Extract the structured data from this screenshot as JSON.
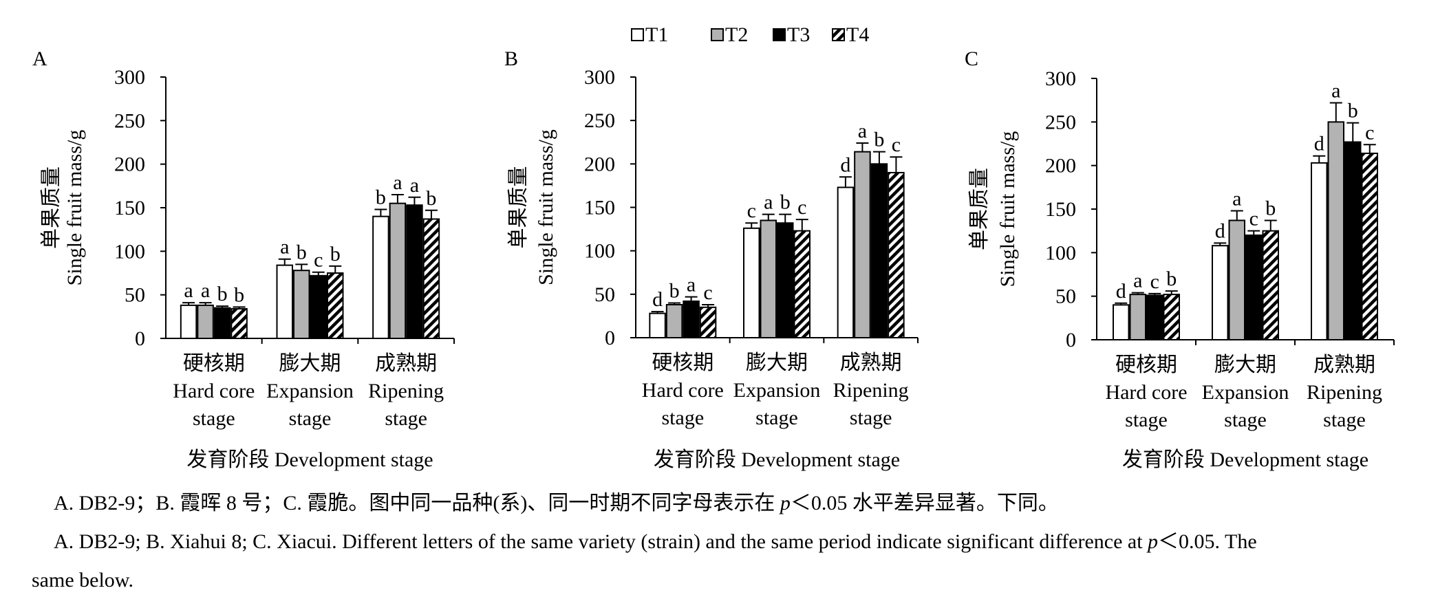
{
  "legend": {
    "items": [
      {
        "label": "T1",
        "fill": "white"
      },
      {
        "label": "T2",
        "fill": "#b3b3b3"
      },
      {
        "label": "T3",
        "fill": "black"
      },
      {
        "label": "T4",
        "fill": "hatch"
      }
    ]
  },
  "chart_data": [
    {
      "type": "bar",
      "panel_label": "A",
      "ylabel_zh": "单果质量",
      "ylabel_en": "Single fruit mass/g",
      "xlabel": "发育阶段 Development stage",
      "ylim": [
        0,
        300
      ],
      "yticks": [
        0,
        50,
        100,
        150,
        200,
        250,
        300
      ],
      "categories": [
        {
          "zh": "硬核期",
          "en1": "Hard core",
          "en2": "stage"
        },
        {
          "zh": "膨大期",
          "en1": "Expansion",
          "en2": "stage"
        },
        {
          "zh": "成熟期",
          "en1": "Ripening",
          "en2": "stage"
        }
      ],
      "series": [
        {
          "name": "T1",
          "values": [
            38,
            84,
            140
          ],
          "errors": [
            3,
            7,
            8
          ],
          "letters": [
            "a",
            "a",
            "b"
          ]
        },
        {
          "name": "T2",
          "values": [
            38,
            78,
            155
          ],
          "errors": [
            3,
            7,
            10
          ],
          "letters": [
            "a",
            "b",
            "a"
          ]
        },
        {
          "name": "T3",
          "values": [
            35,
            72,
            153
          ],
          "errors": [
            2,
            4,
            9
          ],
          "letters": [
            "b",
            "c",
            "a"
          ]
        },
        {
          "name": "T4",
          "values": [
            34,
            75,
            137
          ],
          "errors": [
            2,
            8,
            10
          ],
          "letters": [
            "b",
            "b",
            "b"
          ]
        }
      ]
    },
    {
      "type": "bar",
      "panel_label": "B",
      "ylabel_zh": "单果质量",
      "ylabel_en": "Single fruit mass/g",
      "xlabel": "发育阶段 Development stage",
      "ylim": [
        0,
        300
      ],
      "yticks": [
        0,
        50,
        100,
        150,
        200,
        250,
        300
      ],
      "categories": [
        {
          "zh": "硬核期",
          "en1": "Hard core",
          "en2": "stage"
        },
        {
          "zh": "膨大期",
          "en1": "Expansion",
          "en2": "stage"
        },
        {
          "zh": "成熟期",
          "en1": "Ripening",
          "en2": "stage"
        }
      ],
      "series": [
        {
          "name": "T1",
          "values": [
            28,
            126,
            173
          ],
          "errors": [
            2,
            6,
            12
          ],
          "letters": [
            "d",
            "c",
            "d"
          ]
        },
        {
          "name": "T2",
          "values": [
            38,
            135,
            214
          ],
          "errors": [
            2,
            7,
            10
          ],
          "letters": [
            "b",
            "a",
            "a"
          ]
        },
        {
          "name": "T3",
          "values": [
            42,
            132,
            200
          ],
          "errors": [
            5,
            10,
            14
          ],
          "letters": [
            "a",
            "b",
            "b"
          ]
        },
        {
          "name": "T4",
          "values": [
            35,
            123,
            190
          ],
          "errors": [
            3,
            13,
            18
          ],
          "letters": [
            "c",
            "c",
            "c"
          ]
        }
      ]
    },
    {
      "type": "bar",
      "panel_label": "C",
      "ylabel_zh": "单果质量",
      "ylabel_en": "Single fruit mass/g",
      "xlabel": "发育阶段 Development stage",
      "ylim": [
        0,
        300
      ],
      "yticks": [
        0,
        50,
        100,
        150,
        200,
        250,
        300
      ],
      "categories": [
        {
          "zh": "硬核期",
          "en1": "Hard core",
          "en2": "stage"
        },
        {
          "zh": "膨大期",
          "en1": "Expansion",
          "en2": "stage"
        },
        {
          "zh": "成熟期",
          "en1": "Ripening",
          "en2": "stage"
        }
      ],
      "series": [
        {
          "name": "T1",
          "values": [
            40,
            108,
            203
          ],
          "errors": [
            2,
            3,
            8
          ],
          "letters": [
            "d",
            "d",
            "d"
          ]
        },
        {
          "name": "T2",
          "values": [
            52,
            137,
            250
          ],
          "errors": [
            2,
            11,
            22
          ],
          "letters": [
            "a",
            "a",
            "a"
          ]
        },
        {
          "name": "T3",
          "values": [
            51,
            120,
            227
          ],
          "errors": [
            2,
            5,
            22
          ],
          "letters": [
            "c",
            "c",
            "b"
          ]
        },
        {
          "name": "T4",
          "values": [
            52,
            125,
            214
          ],
          "errors": [
            4,
            12,
            10
          ],
          "letters": [
            "b",
            "b",
            "c"
          ]
        }
      ]
    }
  ],
  "caption": {
    "zh_prefix": "A. DB2-9；B. 霞晖 8 号；C. 霞脆。图中同一品种(系)、同一时期不同字母表示在 ",
    "zh_p": "p",
    "zh_suffix": "＜0.05 水平差异显著。下同。",
    "en_prefix": "A. DB2-9; B. Xiahui 8; C. Xiacui. Different letters of the same variety (strain) and the same period indicate significant difference at ",
    "en_p": "p",
    "en_suffix": "＜0.05. The",
    "en_line2": "same below."
  }
}
